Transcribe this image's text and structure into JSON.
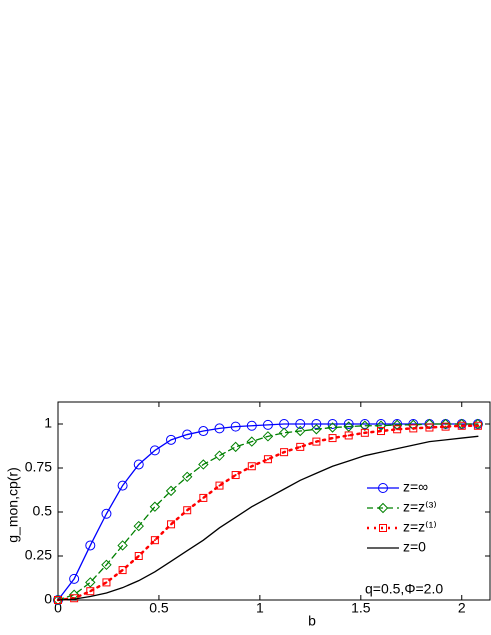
{
  "chart_data": {
    "type": "line",
    "x_label": "b",
    "y_label": "g_mon,cp(r)",
    "annotation": "q=0.5,Φ=2.0",
    "x": [
      0,
      0.08,
      0.16,
      0.24,
      0.32,
      0.4,
      0.48,
      0.56,
      0.64,
      0.72,
      0.8,
      0.88,
      0.96,
      1.04,
      1.12,
      1.2,
      1.28,
      1.36,
      1.44,
      1.52,
      1.6,
      1.68,
      1.76,
      1.84,
      1.92,
      2.0,
      2.08
    ],
    "series": [
      {
        "name": "z=∞",
        "color": "#0000ff",
        "dash": "solid",
        "marker": "circle",
        "values": [
          0,
          0.12,
          0.31,
          0.49,
          0.65,
          0.77,
          0.85,
          0.91,
          0.94,
          0.96,
          0.975,
          0.985,
          0.99,
          0.995,
          1,
          1,
          1,
          1,
          1,
          1,
          1,
          1,
          1,
          1,
          1,
          1,
          1
        ]
      },
      {
        "name": "z=z⁽³⁾",
        "color": "#008000",
        "dash": "dashed",
        "marker": "diamond",
        "values": [
          0,
          0.03,
          0.1,
          0.2,
          0.31,
          0.42,
          0.53,
          0.62,
          0.7,
          0.77,
          0.82,
          0.87,
          0.9,
          0.93,
          0.95,
          0.96,
          0.97,
          0.98,
          0.985,
          0.99,
          0.99,
          0.995,
          0.995,
          1,
          1,
          1,
          1
        ]
      },
      {
        "name": "z=z⁽¹⁾",
        "color": "#ff0000",
        "dash": "dotted",
        "marker": "square",
        "values": [
          0,
          0.01,
          0.05,
          0.1,
          0.17,
          0.25,
          0.34,
          0.43,
          0.51,
          0.58,
          0.65,
          0.71,
          0.76,
          0.8,
          0.84,
          0.87,
          0.9,
          0.92,
          0.935,
          0.95,
          0.96,
          0.97,
          0.975,
          0.98,
          0.985,
          0.99,
          0.99
        ]
      },
      {
        "name": "z=0",
        "color": "#000000",
        "dash": "solid",
        "marker": "none",
        "values": [
          0,
          0.005,
          0.02,
          0.04,
          0.07,
          0.11,
          0.16,
          0.22,
          0.28,
          0.34,
          0.41,
          0.47,
          0.53,
          0.58,
          0.63,
          0.68,
          0.72,
          0.76,
          0.79,
          0.82,
          0.84,
          0.86,
          0.88,
          0.9,
          0.91,
          0.92,
          0.93
        ]
      }
    ],
    "xlim": [
      0,
      2.14
    ],
    "ylim": [
      0,
      1.125
    ],
    "xticks": [
      0,
      0.5,
      1,
      1.5,
      2
    ],
    "yticks": [
      0,
      0.25,
      0.5,
      0.75,
      1
    ],
    "grid": false,
    "legend": "right"
  }
}
